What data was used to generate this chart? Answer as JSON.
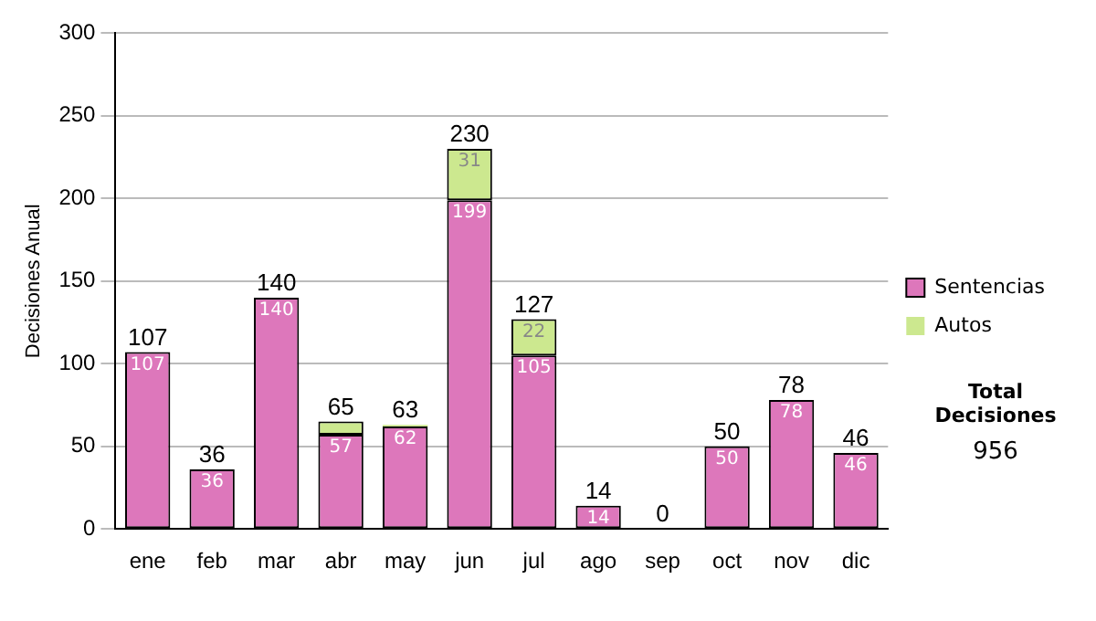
{
  "chart_data": {
    "type": "bar",
    "stacked": true,
    "ylabel": "Decisiones Anual",
    "categories": [
      "ene",
      "feb",
      "mar",
      "abr",
      "may",
      "jun",
      "jul",
      "ago",
      "sep",
      "oct",
      "nov",
      "dic"
    ],
    "series": [
      {
        "name": "Sentencias",
        "color": "#dd77bb",
        "values": [
          107,
          36,
          140,
          57,
          62,
          199,
          105,
          14,
          0,
          50,
          78,
          46
        ],
        "value_labels": [
          "107",
          "36",
          "140",
          "57",
          "62",
          "199",
          "105",
          "14",
          null,
          "50",
          "78",
          "46"
        ]
      },
      {
        "name": "Autos",
        "color": "#cce88f",
        "values": [
          0,
          0,
          0,
          8,
          1,
          31,
          22,
          0,
          0,
          0,
          0,
          0
        ],
        "value_labels": [
          null,
          null,
          null,
          null,
          null,
          "31",
          "22",
          null,
          null,
          null,
          null,
          null
        ]
      }
    ],
    "totals": [
      "107",
      "36",
      "140",
      "65",
      "63",
      "230",
      "127",
      "14",
      "0",
      "50",
      "78",
      "46"
    ],
    "ylim": [
      0,
      300
    ],
    "yticks": [
      0,
      50,
      100,
      150,
      200,
      250,
      300
    ],
    "grid": "y",
    "legend": "right",
    "annotations": [
      "Total Decisiones",
      "956"
    ]
  }
}
